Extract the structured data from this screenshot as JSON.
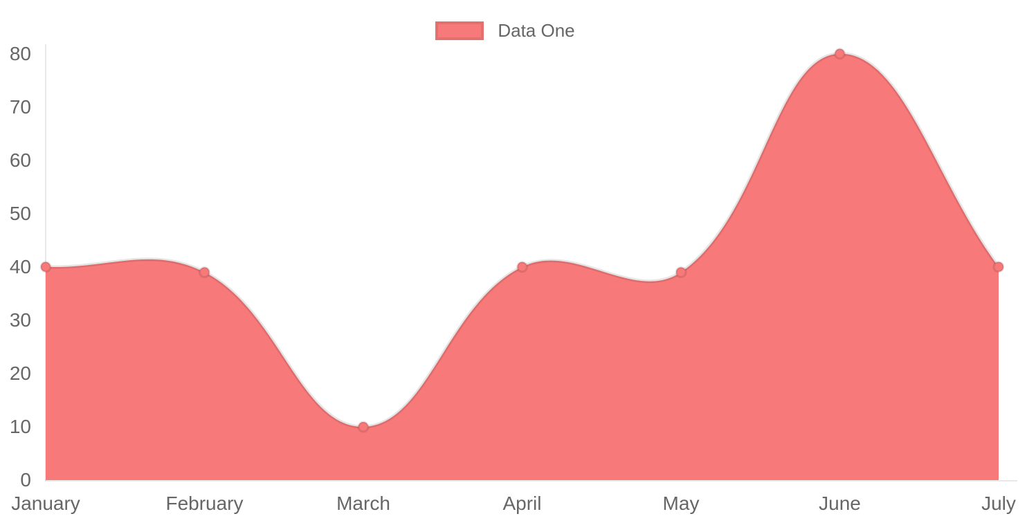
{
  "legend": {
    "label": "Data One",
    "swatch_color": "#f87979"
  },
  "chart_data": {
    "type": "area",
    "title": "",
    "categories": [
      "January",
      "February",
      "March",
      "April",
      "May",
      "June",
      "July"
    ],
    "series": [
      {
        "name": "Data One",
        "values": [
          40,
          39,
          10,
          40,
          39,
          80,
          40
        ]
      }
    ],
    "xlabel": "",
    "ylabel": "",
    "ylim": [
      0,
      80
    ],
    "y_ticks": [
      80,
      70,
      60,
      50,
      40,
      30,
      20,
      10,
      0
    ],
    "grid": false,
    "legend_position": "top-center",
    "line_tension": 0.4,
    "colors": {
      "series_fill": "#f87979",
      "series_line": "rgba(0,0,0,0.10)",
      "point_fill": "#f87979",
      "point_border": "rgba(0,0,0,0.10)",
      "axis_line": "rgba(0,0,0,0.09)",
      "label_text": "#666666",
      "background": "#ffffff"
    }
  }
}
